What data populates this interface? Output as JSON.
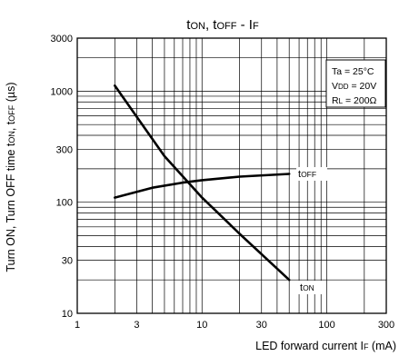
{
  "chart_data": {
    "type": "line",
    "title": {
      "main": "t",
      "sc1": "ON",
      "sep1": ", t",
      "sc2": "OFF",
      "sep2": " - I",
      "sc3": "F"
    },
    "xlabel": {
      "main": "LED forward current I",
      "sub": "F",
      "unit": " (mA)"
    },
    "ylabel": {
      "main": "Turn ON, Turn OFF time t",
      "sub1": "ON",
      "sep": ", t",
      "sub2": "OFF",
      "unit": " (µs)"
    },
    "x_scale": "log",
    "y_scale": "log",
    "xlim": [
      1,
      300
    ],
    "ylim": [
      10,
      3000
    ],
    "x_ticks": [
      1,
      3,
      10,
      30,
      100,
      300
    ],
    "y_ticks": [
      10,
      30,
      100,
      300,
      1000,
      3000
    ],
    "grid": true,
    "conditions": [
      {
        "main": "Ta = 25°C",
        "sub": "",
        "rest": ""
      },
      {
        "main": "V",
        "sub": "DD",
        "rest": " = 20V"
      },
      {
        "main": "R",
        "sub": "L",
        "rest": " = 200Ω"
      }
    ],
    "legend_position": "top-right",
    "series": [
      {
        "label_main": "t",
        "label_sub": "ON",
        "x": [
          2,
          5,
          10,
          20,
          50
        ],
        "y": [
          1120,
          260,
          110,
          52,
          20
        ]
      },
      {
        "label_main": "t",
        "label_sub": "OFF",
        "x": [
          2,
          4,
          7,
          10,
          20,
          50
        ],
        "y": [
          110,
          135,
          150,
          158,
          170,
          180
        ]
      }
    ]
  }
}
